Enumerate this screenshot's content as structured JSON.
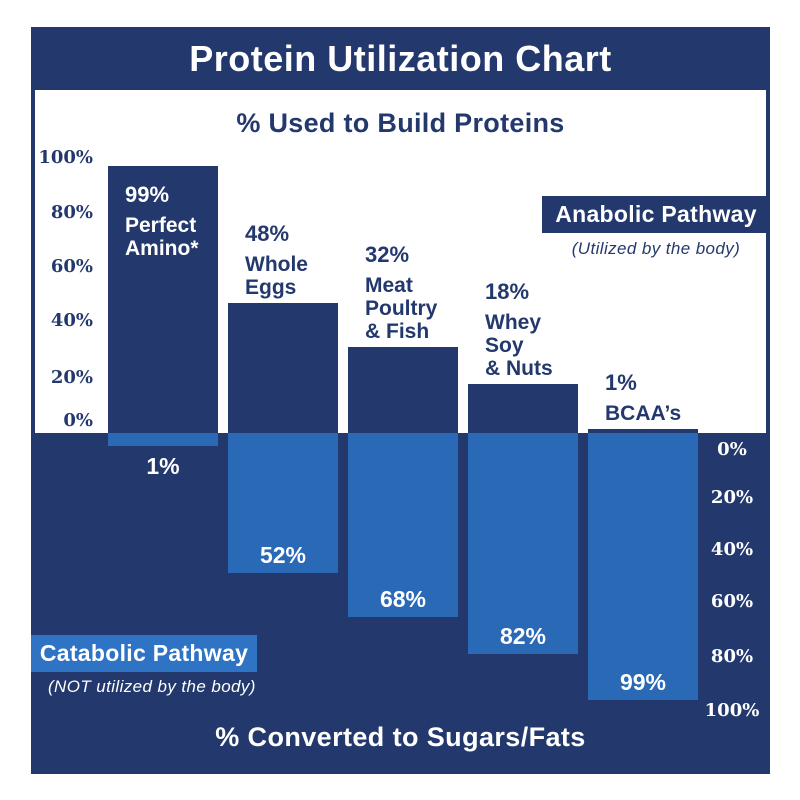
{
  "title": "Protein Utilization Chart",
  "top_axis_title": "% Used to Build Proteins",
  "bottom_axis_title": "% Converted to Sugars/Fats",
  "anabolic": {
    "label": "Anabolic Pathway",
    "sublabel": "(Utilized by the body)"
  },
  "catabolic": {
    "label": "Catabolic Pathway",
    "sublabel": "(NOT utilized by the body)"
  },
  "left_axis": {
    "ticks": [
      "100%",
      "80%",
      "60%",
      "40%",
      "20%",
      "0%"
    ]
  },
  "right_axis": {
    "ticks": [
      "0%",
      "20%",
      "40%",
      "60%",
      "80%",
      "100%"
    ]
  },
  "colors": {
    "navy": "#23386C",
    "bar_blue": "#2A69B5",
    "box_blue": "#2F73C5",
    "white": "#FFFFFF"
  },
  "chart_data": {
    "type": "bar",
    "subtype": "diverging-stacked-percentage",
    "categories": [
      "Perfect Amino*",
      "Whole Eggs",
      "Meat Poultry & Fish",
      "Whey Soy & Nuts",
      "BCAA’s"
    ],
    "series": [
      {
        "name": "% Used to Build Proteins (Anabolic Pathway)",
        "direction": "up",
        "values": [
          99,
          48,
          32,
          18,
          1
        ]
      },
      {
        "name": "% Converted to Sugars/Fats (Catabolic Pathway)",
        "direction": "down",
        "values": [
          1,
          52,
          68,
          82,
          99
        ]
      }
    ],
    "bars": [
      {
        "category_lines": [
          "Perfect",
          "Amino*"
        ],
        "build_pct": 99,
        "convert_pct": 1,
        "build_label": "99%",
        "convert_label": "1%"
      },
      {
        "category_lines": [
          "Whole",
          "Eggs"
        ],
        "build_pct": 48,
        "convert_pct": 52,
        "build_label": "48%",
        "convert_label": "52%"
      },
      {
        "category_lines": [
          "Meat",
          "Poultry",
          "& Fish"
        ],
        "build_pct": 32,
        "convert_pct": 68,
        "build_label": "32%",
        "convert_label": "68%"
      },
      {
        "category_lines": [
          "Whey",
          "Soy",
          "& Nuts"
        ],
        "build_pct": 18,
        "convert_pct": 82,
        "build_label": "18%",
        "convert_label": "82%"
      },
      {
        "category_lines": [
          "BCAA’s"
        ],
        "build_pct": 1,
        "convert_pct": 99,
        "build_label": "1%",
        "convert_label": "99%"
      }
    ],
    "ylim_up": [
      0,
      100
    ],
    "ylim_down": [
      0,
      100
    ],
    "grid": false,
    "legend_position": "none"
  }
}
